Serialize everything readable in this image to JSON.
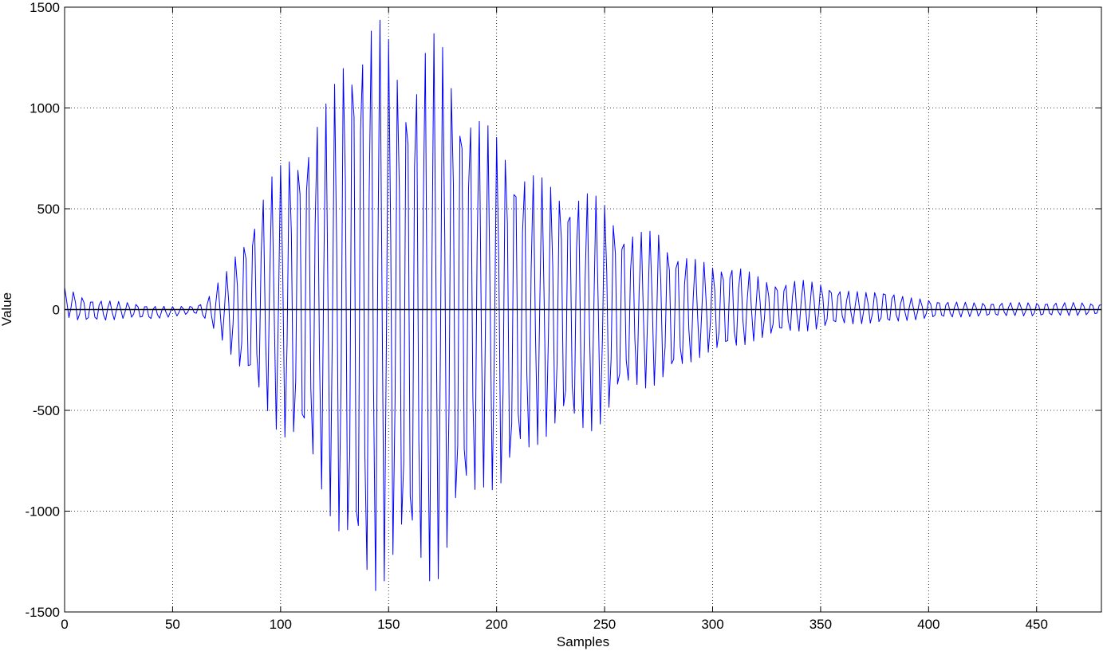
{
  "chart_data": {
    "type": "line",
    "title": "",
    "xlabel": "Samples",
    "ylabel": "Value",
    "xlim": [
      0,
      480
    ],
    "ylim": [
      -1500,
      1500
    ],
    "xticks": [
      0,
      50,
      100,
      150,
      200,
      250,
      300,
      350,
      400,
      450
    ],
    "yticks": [
      1500,
      1000,
      500,
      0,
      -500,
      -1000,
      -1500
    ],
    "xtick_labels": [
      "0",
      "50",
      "100",
      "150",
      "200",
      "250",
      "300",
      "350",
      "400",
      "450"
    ],
    "ytick_labels": [
      "1500",
      "1000",
      "500",
      "0",
      "-500",
      "-1000",
      "-1500"
    ],
    "grid": true,
    "zero_line": true,
    "series": [
      {
        "color": "#0000ff",
        "sample_count": 481,
        "oscillation_period_samples": 4.17,
        "envelope_upper": [
          [
            0,
            110
          ],
          [
            5,
            85
          ],
          [
            10,
            55
          ],
          [
            20,
            45
          ],
          [
            30,
            35
          ],
          [
            40,
            20
          ],
          [
            50,
            15
          ],
          [
            60,
            20
          ],
          [
            65,
            40
          ],
          [
            70,
            120
          ],
          [
            75,
            190
          ],
          [
            80,
            300
          ],
          [
            85,
            420
          ],
          [
            90,
            540
          ],
          [
            95,
            650
          ],
          [
            100,
            720
          ],
          [
            105,
            800
          ],
          [
            110,
            870
          ],
          [
            115,
            940
          ],
          [
            120,
            1000
          ],
          [
            125,
            1130
          ],
          [
            130,
            1340
          ],
          [
            135,
            1450
          ],
          [
            140,
            1460
          ],
          [
            145,
            1460
          ],
          [
            150,
            1360
          ],
          [
            155,
            1230
          ],
          [
            160,
            1210
          ],
          [
            165,
            1300
          ],
          [
            170,
            1380
          ],
          [
            175,
            1330
          ],
          [
            180,
            1200
          ],
          [
            185,
            1100
          ],
          [
            190,
            1000
          ],
          [
            195,
            920
          ],
          [
            200,
            880
          ],
          [
            205,
            840
          ],
          [
            210,
            760
          ],
          [
            215,
            700
          ],
          [
            220,
            660
          ],
          [
            225,
            630
          ],
          [
            230,
            620
          ],
          [
            235,
            610
          ],
          [
            240,
            600
          ],
          [
            245,
            570
          ],
          [
            250,
            540
          ],
          [
            255,
            480
          ],
          [
            260,
            410
          ],
          [
            265,
            390
          ],
          [
            270,
            390
          ],
          [
            275,
            390
          ],
          [
            280,
            330
          ],
          [
            285,
            300
          ],
          [
            290,
            260
          ],
          [
            295,
            240
          ],
          [
            300,
            220
          ],
          [
            305,
            230
          ],
          [
            310,
            240
          ],
          [
            315,
            200
          ],
          [
            320,
            170
          ],
          [
            325,
            145
          ],
          [
            330,
            140
          ],
          [
            335,
            145
          ],
          [
            340,
            150
          ],
          [
            345,
            140
          ],
          [
            350,
            130
          ],
          [
            360,
            100
          ],
          [
            370,
            85
          ],
          [
            380,
            100
          ],
          [
            390,
            60
          ],
          [
            400,
            50
          ],
          [
            410,
            40
          ],
          [
            420,
            35
          ],
          [
            430,
            35
          ],
          [
            440,
            35
          ],
          [
            450,
            35
          ],
          [
            460,
            35
          ],
          [
            470,
            35
          ],
          [
            480,
            30
          ]
        ],
        "envelope_lower": [
          [
            0,
            -30
          ],
          [
            5,
            -55
          ],
          [
            10,
            -60
          ],
          [
            20,
            -55
          ],
          [
            30,
            -40
          ],
          [
            40,
            -50
          ],
          [
            50,
            -35
          ],
          [
            60,
            -20
          ],
          [
            65,
            -50
          ],
          [
            70,
            -110
          ],
          [
            75,
            -180
          ],
          [
            80,
            -300
          ],
          [
            85,
            -380
          ],
          [
            90,
            -450
          ],
          [
            95,
            -540
          ],
          [
            100,
            -630
          ],
          [
            105,
            -690
          ],
          [
            110,
            -740
          ],
          [
            115,
            -820
          ],
          [
            120,
            -940
          ],
          [
            125,
            -1080
          ],
          [
            130,
            -1240
          ],
          [
            135,
            -1420
          ],
          [
            140,
            -1440
          ],
          [
            145,
            -1420
          ],
          [
            150,
            -1300
          ],
          [
            155,
            -1240
          ],
          [
            160,
            -1330
          ],
          [
            165,
            -1350
          ],
          [
            170,
            -1370
          ],
          [
            175,
            -1320
          ],
          [
            180,
            -1150
          ],
          [
            185,
            -1060
          ],
          [
            190,
            -970
          ],
          [
            195,
            -870
          ],
          [
            200,
            -920
          ],
          [
            205,
            -920
          ],
          [
            210,
            -800
          ],
          [
            215,
            -730
          ],
          [
            220,
            -660
          ],
          [
            225,
            -620
          ],
          [
            230,
            -600
          ],
          [
            235,
            -620
          ],
          [
            240,
            -620
          ],
          [
            245,
            -600
          ],
          [
            250,
            -560
          ],
          [
            255,
            -490
          ],
          [
            260,
            -420
          ],
          [
            265,
            -390
          ],
          [
            270,
            -390
          ],
          [
            275,
            -380
          ],
          [
            280,
            -360
          ],
          [
            285,
            -320
          ],
          [
            290,
            -270
          ],
          [
            295,
            -230
          ],
          [
            300,
            -210
          ],
          [
            305,
            -220
          ],
          [
            310,
            -210
          ],
          [
            315,
            -180
          ],
          [
            320,
            -150
          ],
          [
            325,
            -140
          ],
          [
            330,
            -130
          ],
          [
            335,
            -120
          ],
          [
            340,
            -110
          ],
          [
            345,
            -105
          ],
          [
            350,
            -100
          ],
          [
            360,
            -75
          ],
          [
            370,
            -70
          ],
          [
            380,
            -75
          ],
          [
            390,
            -55
          ],
          [
            400,
            -45
          ],
          [
            410,
            -40
          ],
          [
            420,
            -35
          ],
          [
            430,
            -35
          ],
          [
            440,
            -30
          ],
          [
            450,
            -35
          ],
          [
            460,
            -30
          ],
          [
            470,
            -30
          ],
          [
            480,
            -25
          ]
        ]
      },
      {
        "color": "#000000",
        "values": [
          [
            0,
            0
          ],
          [
            480,
            0
          ]
        ]
      }
    ]
  }
}
